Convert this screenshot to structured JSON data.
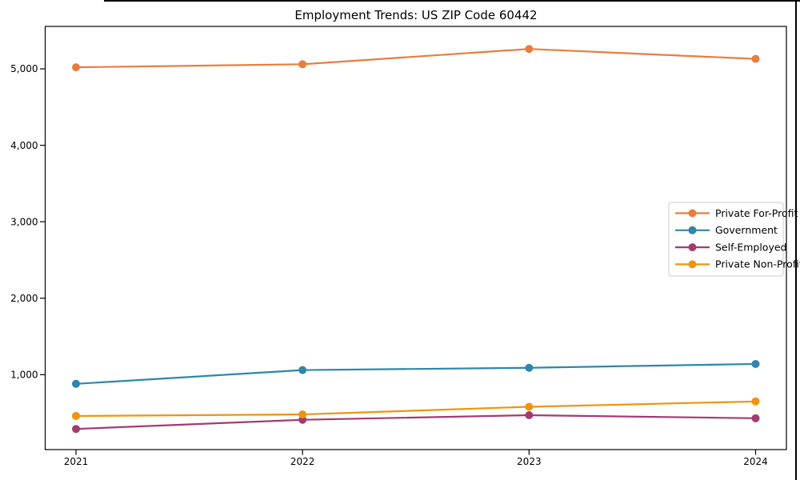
{
  "chart_data": {
    "type": "line",
    "title": "Employment Trends: US ZIP Code 60442",
    "xlabel": "",
    "ylabel": "",
    "categories": [
      "2021",
      "2022",
      "2023",
      "2024"
    ],
    "x": [
      2021,
      2022,
      2023,
      2024
    ],
    "series": [
      {
        "name": "Private For-Profit",
        "color": "#E87D3D",
        "values": [
          5020,
          5060,
          5260,
          5130
        ]
      },
      {
        "name": "Government",
        "color": "#2E86AB",
        "values": [
          880,
          1060,
          1090,
          1140
        ]
      },
      {
        "name": "Self-Employed",
        "color": "#A23B72",
        "values": [
          290,
          410,
          470,
          430
        ]
      },
      {
        "name": "Private Non-Profit",
        "color": "#F0930D",
        "values": [
          460,
          480,
          580,
          650
        ]
      }
    ],
    "ylim": [
      20,
      5555
    ],
    "yticks": [
      1000,
      2000,
      3000,
      4000,
      5000
    ],
    "ytick_labels": [
      "1,000",
      "2,000",
      "3,000",
      "4,000",
      "5,000"
    ],
    "grid": false,
    "legend_position": "center right",
    "marker": "circle",
    "axis_color": "#000000",
    "legend_border_color": "#cccccc",
    "background_color": "#ffffff"
  }
}
